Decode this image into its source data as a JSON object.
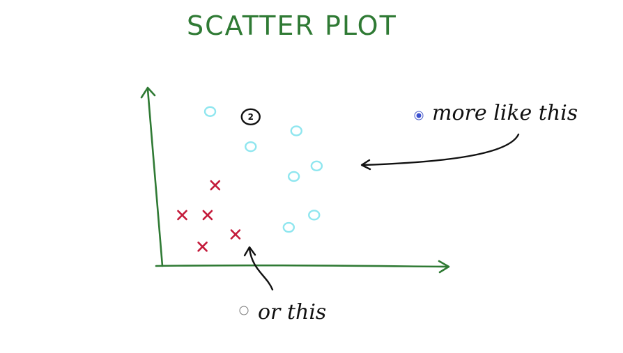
{
  "title": "SCATTER PLOT",
  "options": [
    {
      "label": "more like this",
      "selected": true
    },
    {
      "label": "or this",
      "selected": false
    }
  ],
  "colors": {
    "axis": "#2f7a34",
    "title": "#2f7a34",
    "class_o": "#8fe6ef",
    "class_x": "#c41b3b",
    "highlight": "#111111",
    "radio_selected": "#3a4fd0"
  },
  "chart_data": {
    "type": "scatter",
    "title": "SCATTER PLOT",
    "xlabel": "",
    "ylabel": "",
    "xlim": [
      0,
      10
    ],
    "ylim": [
      0,
      10
    ],
    "grid": false,
    "series": [
      {
        "marker": "o",
        "points": [
          [
            1.8,
            8.8
          ],
          [
            3.4,
            6.8
          ],
          [
            5.2,
            7.7
          ],
          [
            5.1,
            5.1
          ],
          [
            6.0,
            5.7
          ],
          [
            5.9,
            2.9
          ],
          [
            4.9,
            2.2
          ]
        ]
      },
      {
        "marker": "x",
        "points": [
          [
            2.0,
            4.6
          ],
          [
            0.7,
            2.9
          ],
          [
            1.7,
            2.9
          ],
          [
            2.8,
            1.8
          ],
          [
            1.5,
            1.1
          ]
        ]
      }
    ],
    "highlighted_point": {
      "marker": "o",
      "point": [
        3.4,
        8.5
      ],
      "text": "2"
    }
  }
}
